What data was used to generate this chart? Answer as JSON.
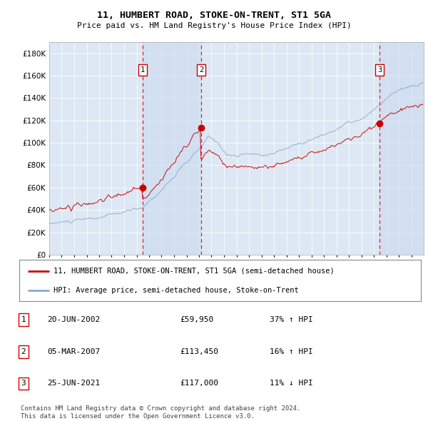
{
  "title": "11, HUMBERT ROAD, STOKE-ON-TRENT, ST1 5GA",
  "subtitle": "Price paid vs. HM Land Registry's House Price Index (HPI)",
  "yticks": [
    0,
    20000,
    40000,
    60000,
    80000,
    100000,
    120000,
    140000,
    160000,
    180000
  ],
  "ytick_labels": [
    "£0",
    "£20K",
    "£40K",
    "£60K",
    "£80K",
    "£100K",
    "£120K",
    "£140K",
    "£160K",
    "£180K"
  ],
  "ylim": [
    0,
    190000
  ],
  "sale1_date": "2002-06-20",
  "sale1_price": 59950,
  "sale2_date": "2007-03-05",
  "sale2_price": 113450,
  "sale3_date": "2021-06-25",
  "sale3_price": 117000,
  "legend1": "11, HUMBERT ROAD, STOKE-ON-TRENT, ST1 5GA (semi-detached house)",
  "legend2": "HPI: Average price, semi-detached house, Stoke-on-Trent",
  "footer": "Contains HM Land Registry data © Crown copyright and database right 2024.\nThis data is licensed under the Open Government Licence v3.0.",
  "line_color": "#cc0000",
  "hpi_color": "#88aacc",
  "background_color": "#ffffff",
  "plot_bg_color": "#dde8f4",
  "grid_color": "#c8d4e4",
  "sale_marker_color": "#cc0000",
  "dashed_line_color": "#dd0000",
  "shade_color": "#c8d8ee",
  "table_rows": [
    [
      "1",
      "20-JUN-2002",
      "£59,950",
      "37% ↑ HPI"
    ],
    [
      "2",
      "05-MAR-2007",
      "£113,450",
      "16% ↑ HPI"
    ],
    [
      "3",
      "25-JUN-2021",
      "£117,000",
      "11% ↓ HPI"
    ]
  ]
}
